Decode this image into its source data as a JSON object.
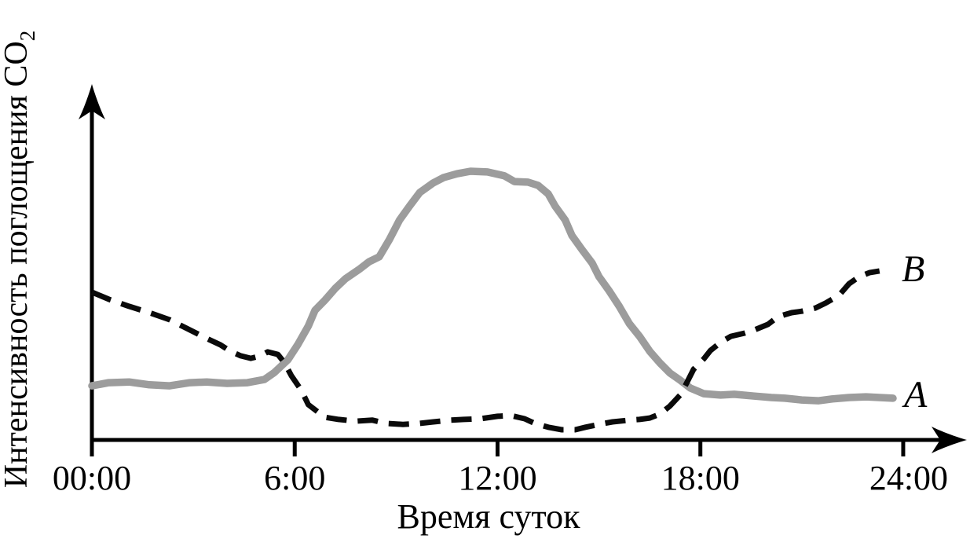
{
  "figure": {
    "background_color": "#ffffff",
    "axis_color": "#000000"
  },
  "chart_data": {
    "type": "line",
    "title": "",
    "xlabel": "Время суток",
    "ylabel": "Интенсивность поглощения CO₂",
    "ylabel_main": "Интенсивность поглощения CO",
    "ylabel_sub": "2",
    "x_range_hours": [
      0,
      24
    ],
    "y_axis_note": "relative intensity, axis unlabeled (0-100 estimated units)",
    "ylim": [
      0,
      100
    ],
    "grid": false,
    "legend_position": "labels at right end of each curve",
    "x_ticks": [
      {
        "label": "00:00",
        "hour": 0
      },
      {
        "label": "6:00",
        "hour": 6
      },
      {
        "label": "12:00",
        "hour": 12
      },
      {
        "label": "18:00",
        "hour": 18
      },
      {
        "label": "24:00",
        "hour": 24
      }
    ],
    "series": [
      {
        "name": "A",
        "style": "solid",
        "color": "#9c9c9c",
        "points": [
          [
            0,
            15.3
          ],
          [
            0.5,
            16.2
          ],
          [
            1.1,
            16.4
          ],
          [
            1.7,
            15.6
          ],
          [
            2.3,
            15.3
          ],
          [
            2.9,
            16.2
          ],
          [
            3.4,
            16.4
          ],
          [
            4.0,
            16.0
          ],
          [
            4.6,
            16.2
          ],
          [
            5.1,
            17.1
          ],
          [
            5.4,
            19.1
          ],
          [
            5.8,
            22.7
          ],
          [
            6.1,
            27.1
          ],
          [
            6.4,
            32.2
          ],
          [
            6.6,
            36.7
          ],
          [
            6.9,
            39.6
          ],
          [
            7.2,
            42.9
          ],
          [
            7.5,
            45.6
          ],
          [
            7.9,
            48.2
          ],
          [
            8.2,
            50.4
          ],
          [
            8.5,
            51.8
          ],
          [
            8.8,
            56.7
          ],
          [
            9.1,
            62.2
          ],
          [
            9.4,
            66.2
          ],
          [
            9.7,
            70.0
          ],
          [
            10.1,
            72.7
          ],
          [
            10.4,
            74.2
          ],
          [
            10.8,
            75.3
          ],
          [
            11.2,
            76.0
          ],
          [
            11.7,
            75.8
          ],
          [
            12.2,
            74.7
          ],
          [
            12.5,
            73.1
          ],
          [
            12.9,
            72.9
          ],
          [
            13.2,
            72.0
          ],
          [
            13.5,
            69.6
          ],
          [
            13.7,
            66.2
          ],
          [
            14.0,
            62.2
          ],
          [
            14.2,
            57.8
          ],
          [
            14.5,
            53.8
          ],
          [
            14.8,
            50.0
          ],
          [
            15.0,
            46.2
          ],
          [
            15.3,
            42.2
          ],
          [
            15.6,
            37.8
          ],
          [
            15.9,
            32.9
          ],
          [
            16.2,
            29.3
          ],
          [
            16.5,
            25.1
          ],
          [
            16.8,
            21.8
          ],
          [
            17.1,
            18.9
          ],
          [
            17.4,
            16.9
          ],
          [
            17.7,
            14.7
          ],
          [
            18.1,
            13.1
          ],
          [
            18.6,
            12.7
          ],
          [
            19.0,
            12.9
          ],
          [
            19.6,
            12.4
          ],
          [
            20.1,
            12.0
          ],
          [
            20.5,
            11.8
          ],
          [
            21.0,
            11.3
          ],
          [
            21.5,
            11.1
          ],
          [
            21.9,
            11.6
          ],
          [
            22.4,
            12.0
          ],
          [
            22.9,
            12.2
          ],
          [
            23.3,
            12.0
          ],
          [
            23.7,
            11.8
          ]
        ]
      },
      {
        "name": "B",
        "style": "dashed",
        "color": "#0a0a0a",
        "points": [
          [
            0,
            41.8
          ],
          [
            0.5,
            39.8
          ],
          [
            1.1,
            37.8
          ],
          [
            1.7,
            36.0
          ],
          [
            2.3,
            34.0
          ],
          [
            2.9,
            31.1
          ],
          [
            3.4,
            28.7
          ],
          [
            3.8,
            26.9
          ],
          [
            4.1,
            25.1
          ],
          [
            4.4,
            23.8
          ],
          [
            4.7,
            23.1
          ],
          [
            5.0,
            23.8
          ],
          [
            5.2,
            24.9
          ],
          [
            5.5,
            24.2
          ],
          [
            5.7,
            21.8
          ],
          [
            5.9,
            18.2
          ],
          [
            6.2,
            14.0
          ],
          [
            6.4,
            10.0
          ],
          [
            6.7,
            7.8
          ],
          [
            6.9,
            6.4
          ],
          [
            7.3,
            5.8
          ],
          [
            7.8,
            5.3
          ],
          [
            8.3,
            5.6
          ],
          [
            8.7,
            4.7
          ],
          [
            9.2,
            4.4
          ],
          [
            9.7,
            4.7
          ],
          [
            10.1,
            5.1
          ],
          [
            10.6,
            5.6
          ],
          [
            11.0,
            5.8
          ],
          [
            11.5,
            6.0
          ],
          [
            12.0,
            6.7
          ],
          [
            12.4,
            6.9
          ],
          [
            12.8,
            6.0
          ],
          [
            13.1,
            4.7
          ],
          [
            13.5,
            3.6
          ],
          [
            13.9,
            2.9
          ],
          [
            14.3,
            2.9
          ],
          [
            14.6,
            3.6
          ],
          [
            15.0,
            4.4
          ],
          [
            15.4,
            5.1
          ],
          [
            15.9,
            5.6
          ],
          [
            16.2,
            5.8
          ],
          [
            16.5,
            6.2
          ],
          [
            16.8,
            7.3
          ],
          [
            17.1,
            9.6
          ],
          [
            17.4,
            12.7
          ],
          [
            17.6,
            16.2
          ],
          [
            17.8,
            20.0
          ],
          [
            18.1,
            22.9
          ],
          [
            18.3,
            25.3
          ],
          [
            18.6,
            27.6
          ],
          [
            18.9,
            29.3
          ],
          [
            19.3,
            30.2
          ],
          [
            19.6,
            31.1
          ],
          [
            20.0,
            32.7
          ],
          [
            20.3,
            34.9
          ],
          [
            20.7,
            36.0
          ],
          [
            21.0,
            36.4
          ],
          [
            21.4,
            37.3
          ],
          [
            21.7,
            38.7
          ],
          [
            22.1,
            40.9
          ],
          [
            22.4,
            44.2
          ],
          [
            22.7,
            46.2
          ],
          [
            23.0,
            47.3
          ],
          [
            23.3,
            47.8
          ]
        ]
      }
    ]
  }
}
